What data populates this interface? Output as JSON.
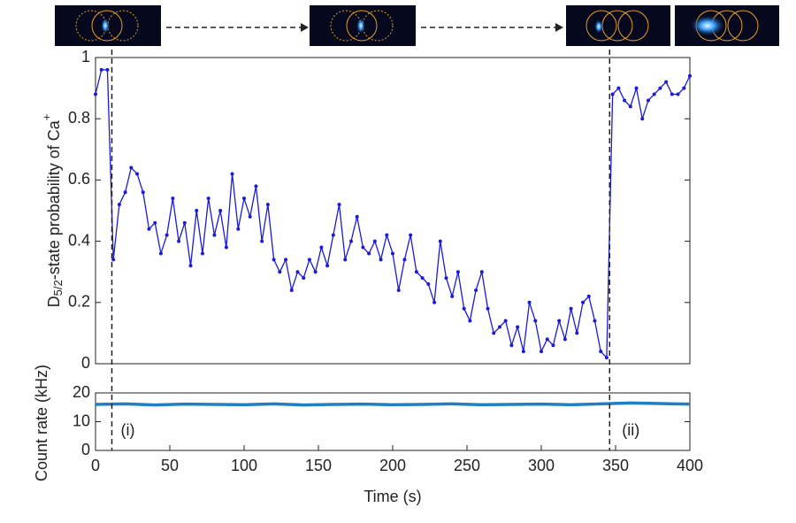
{
  "chart_data": [
    {
      "type": "line",
      "ylabel": {
        "main": "D",
        "sub": "5/2",
        "rest": "-state probability of Ca",
        "sup": "+"
      },
      "x": [
        0,
        4,
        8,
        12,
        16,
        20,
        24,
        28,
        32,
        36,
        40,
        44,
        48,
        52,
        56,
        60,
        64,
        68,
        72,
        76,
        80,
        84,
        88,
        92,
        96,
        100,
        104,
        108,
        112,
        116,
        120,
        124,
        128,
        132,
        136,
        140,
        144,
        148,
        152,
        156,
        160,
        164,
        168,
        172,
        176,
        180,
        184,
        188,
        192,
        196,
        200,
        204,
        208,
        212,
        216,
        220,
        224,
        228,
        232,
        236,
        240,
        244,
        248,
        252,
        256,
        260,
        264,
        268,
        272,
        276,
        280,
        284,
        288,
        292,
        296,
        300,
        304,
        308,
        312,
        316,
        320,
        324,
        328,
        332,
        336,
        340,
        344,
        348,
        352,
        356,
        360,
        364,
        368,
        372,
        376,
        380,
        384,
        388,
        392,
        396,
        400
      ],
      "series": [
        {
          "color": "#1a1adc",
          "values": [
            0.88,
            0.96,
            0.96,
            0.34,
            0.52,
            0.56,
            0.64,
            0.62,
            0.56,
            0.44,
            0.46,
            0.36,
            0.42,
            0.54,
            0.4,
            0.46,
            0.32,
            0.5,
            0.36,
            0.54,
            0.42,
            0.5,
            0.38,
            0.62,
            0.44,
            0.54,
            0.48,
            0.58,
            0.4,
            0.52,
            0.34,
            0.3,
            0.34,
            0.24,
            0.3,
            0.28,
            0.34,
            0.3,
            0.38,
            0.32,
            0.42,
            0.52,
            0.34,
            0.4,
            0.48,
            0.38,
            0.36,
            0.4,
            0.34,
            0.42,
            0.36,
            0.24,
            0.34,
            0.42,
            0.3,
            0.28,
            0.26,
            0.2,
            0.4,
            0.28,
            0.22,
            0.3,
            0.18,
            0.14,
            0.24,
            0.3,
            0.18,
            0.1,
            0.12,
            0.14,
            0.06,
            0.12,
            0.04,
            0.2,
            0.14,
            0.04,
            0.08,
            0.06,
            0.14,
            0.08,
            0.18,
            0.1,
            0.2,
            0.22,
            0.14,
            0.04,
            0.02,
            0.88,
            0.9,
            0.86,
            0.84,
            0.9,
            0.8,
            0.86,
            0.88,
            0.9,
            0.92,
            0.88,
            0.88,
            0.9,
            0.94
          ]
        }
      ],
      "xlim": [
        0,
        400
      ],
      "ylim": [
        0,
        1
      ],
      "yticks": [
        0,
        0.2,
        0.4,
        0.6,
        0.8,
        1
      ]
    },
    {
      "type": "line",
      "ylabel": "Count rate (kHz)",
      "xlabel": "Time (s)",
      "x": [
        0,
        20,
        40,
        60,
        80,
        100,
        120,
        140,
        160,
        180,
        200,
        220,
        240,
        260,
        280,
        300,
        320,
        340,
        360,
        380,
        400
      ],
      "series": [
        {
          "color": "#1f7fc4",
          "values": [
            16,
            16.2,
            15.8,
            16.1,
            16,
            15.9,
            16.2,
            15.8,
            16,
            16.1,
            15.9,
            16,
            16.2,
            15.9,
            16,
            16.1,
            15.9,
            16.2,
            16.5,
            16.3,
            16.1
          ]
        }
      ],
      "xlim": [
        0,
        400
      ],
      "ylim": [
        0,
        20
      ],
      "xticks": [
        0,
        50,
        100,
        150,
        200,
        250,
        300,
        350,
        400
      ],
      "yticks": [
        0,
        10,
        20
      ]
    }
  ],
  "events": [
    {
      "x": 11,
      "label": "(i)"
    },
    {
      "x": 346,
      "label": "(ii)"
    }
  ]
}
